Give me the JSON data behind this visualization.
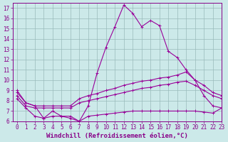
{
  "background_color": "#cce9e9",
  "line_color": "#990099",
  "grid_color": "#99bbbb",
  "xlabel": "Windchill (Refroidissement éolien,°C)",
  "xlim": [
    -0.5,
    23
  ],
  "ylim": [
    6,
    17.5
  ],
  "yticks": [
    6,
    7,
    8,
    9,
    10,
    11,
    12,
    13,
    14,
    15,
    16,
    17
  ],
  "xticks": [
    0,
    1,
    2,
    3,
    4,
    5,
    6,
    7,
    8,
    9,
    10,
    11,
    12,
    13,
    14,
    15,
    16,
    17,
    18,
    19,
    20,
    21,
    22,
    23
  ],
  "lines": [
    {
      "x": [
        0,
        1,
        2,
        3,
        4,
        5,
        6,
        7,
        8,
        9,
        10,
        11,
        12,
        13,
        14,
        15,
        16,
        17,
        18,
        19,
        20,
        21,
        22,
        23
      ],
      "y": [
        9.0,
        7.8,
        7.5,
        6.3,
        7.0,
        6.5,
        6.5,
        6.0,
        7.5,
        10.7,
        13.2,
        15.2,
        17.3,
        16.5,
        15.2,
        15.8,
        15.3,
        12.8,
        12.2,
        11.0,
        10.0,
        8.5,
        7.5,
        7.3
      ]
    },
    {
      "x": [
        0,
        1,
        2,
        3,
        4,
        5,
        6,
        7,
        8,
        9,
        10,
        11,
        12,
        13,
        14,
        15,
        16,
        17,
        18,
        19,
        20,
        21,
        22,
        23
      ],
      "y": [
        8.8,
        7.8,
        7.5,
        7.5,
        7.5,
        7.5,
        7.5,
        8.2,
        8.5,
        8.7,
        9.0,
        9.2,
        9.5,
        9.7,
        9.9,
        10.0,
        10.2,
        10.3,
        10.5,
        10.8,
        10.0,
        9.5,
        8.8,
        8.5
      ]
    },
    {
      "x": [
        0,
        1,
        2,
        3,
        4,
        5,
        6,
        7,
        8,
        9,
        10,
        11,
        12,
        13,
        14,
        15,
        16,
        17,
        18,
        19,
        20,
        21,
        22,
        23
      ],
      "y": [
        8.5,
        7.5,
        7.3,
        7.3,
        7.3,
        7.3,
        7.3,
        7.8,
        8.0,
        8.2,
        8.4,
        8.6,
        8.8,
        9.0,
        9.2,
        9.3,
        9.5,
        9.6,
        9.8,
        9.9,
        9.5,
        9.0,
        8.5,
        8.2
      ]
    },
    {
      "x": [
        0,
        1,
        2,
        3,
        4,
        5,
        6,
        7,
        8,
        9,
        10,
        11,
        12,
        13,
        14,
        15,
        16,
        17,
        18,
        19,
        20,
        21,
        22,
        23
      ],
      "y": [
        8.2,
        7.3,
        6.5,
        6.3,
        6.5,
        6.5,
        6.3,
        6.0,
        6.5,
        6.6,
        6.7,
        6.8,
        6.9,
        7.0,
        7.0,
        7.0,
        7.0,
        7.0,
        7.0,
        7.0,
        7.0,
        6.9,
        6.8,
        7.3
      ]
    }
  ],
  "marker": "+",
  "marker_size": 3,
  "linewidth": 0.8,
  "xlabel_fontsize": 6.5,
  "tick_fontsize": 5.5,
  "tick_color": "#880088",
  "label_color": "#880088",
  "axis_color": "#880088"
}
